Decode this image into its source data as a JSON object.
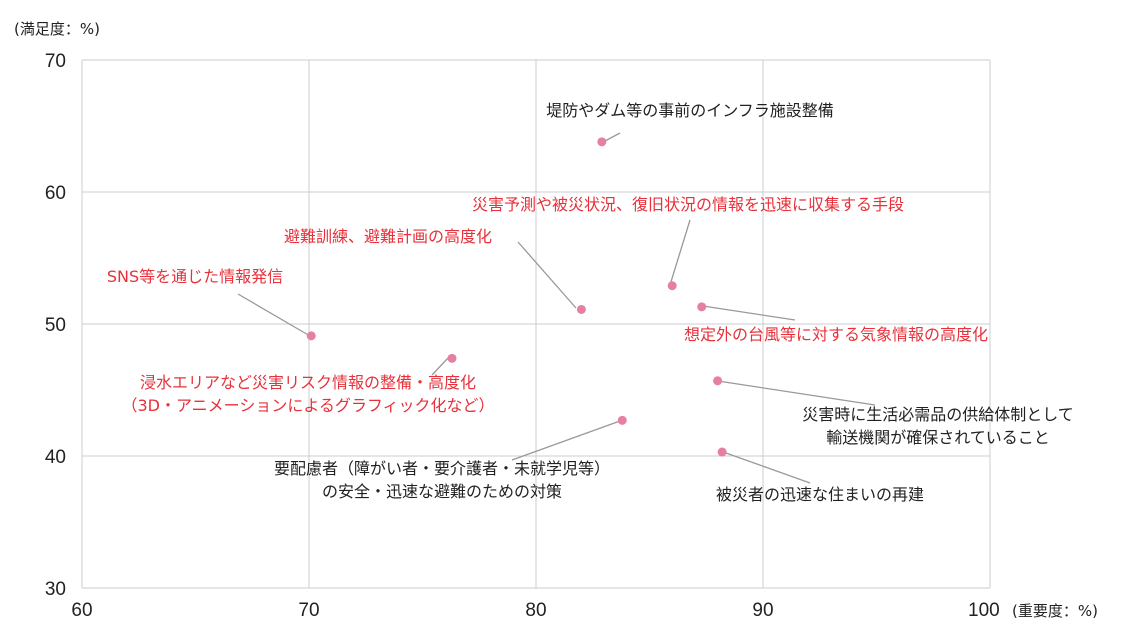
{
  "chart_data": {
    "type": "scatter",
    "xlabel": "(重要度：%)",
    "ylabel": "(満足度：%)",
    "xlim": [
      60,
      100
    ],
    "ylim": [
      30,
      70
    ],
    "xticks": [
      60,
      70,
      80,
      90,
      100
    ],
    "yticks": [
      30,
      40,
      50,
      60,
      70
    ],
    "grid": true,
    "colors": {
      "highlight": "#e8313a",
      "normal": "#222222",
      "point": "#e57fa3",
      "grid": "#cccccc",
      "leader": "#999999"
    },
    "points": [
      {
        "x": 82.9,
        "y": 63.8,
        "lines": [
          "堤防やダム等の事前のインフラ施設整備"
        ],
        "highlight": false
      },
      {
        "x": 86.0,
        "y": 52.9,
        "lines": [
          "災害予測や被災状況、復旧状況の情報を迅速に収集する手段"
        ],
        "highlight": true
      },
      {
        "x": 82.0,
        "y": 51.1,
        "lines": [
          "避難訓練、避難計画の高度化"
        ],
        "highlight": true
      },
      {
        "x": 70.1,
        "y": 49.1,
        "lines": [
          "SNS等を通じた情報発信"
        ],
        "highlight": true
      },
      {
        "x": 87.3,
        "y": 51.3,
        "lines": [
          "想定外の台風等に対する気象情報の高度化"
        ],
        "highlight": true
      },
      {
        "x": 76.3,
        "y": 47.4,
        "lines": [
          "浸水エリアなど災害リスク情報の整備・高度化",
          "（3D・アニメーションによるグラフィック化など）"
        ],
        "highlight": true
      },
      {
        "x": 88.0,
        "y": 45.7,
        "lines": [
          "災害時に生活必需品の供給体制として",
          "輸送機関が確保されていること"
        ],
        "highlight": false
      },
      {
        "x": 83.8,
        "y": 42.7,
        "lines": [
          "要配慮者（障がい者・要介護者・未就学児等）",
          "の安全・迅速な避難のための対策"
        ],
        "highlight": false
      },
      {
        "x": 88.2,
        "y": 40.3,
        "lines": [
          "被災者の迅速な住まいの再建"
        ],
        "highlight": false
      }
    ]
  }
}
